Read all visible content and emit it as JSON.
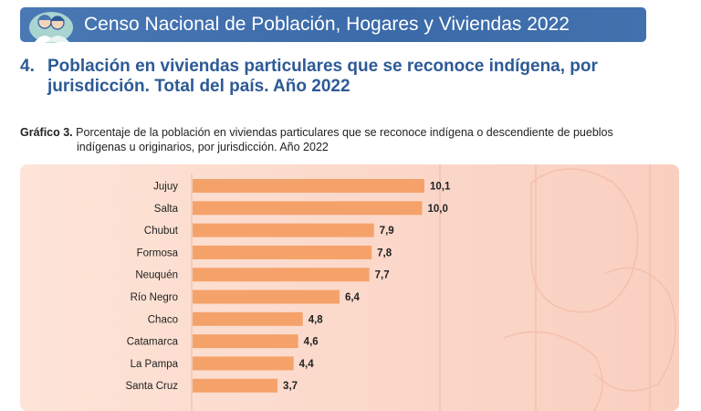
{
  "header": {
    "title": "Censo Nacional de Población, Hogares y Viviendas 2022"
  },
  "section": {
    "number": "4.",
    "title_line1": "Población en viviendas particulares que se reconoce indígena, por",
    "title_line2": "jurisdicción. Total del país. Año 2022"
  },
  "caption": {
    "label": "Gráfico 3.",
    "text_line1": "Porcentaje de la población en viviendas particulares que se reconoce indígena o descendiente de pueblos",
    "text_line2": "indígenas u originarios, por jurisdicción. Año 2022"
  },
  "colors": {
    "bar": "#f5a26a",
    "banner": "#3b6aa8",
    "heading": "#2d5a95"
  },
  "chart_data": {
    "type": "bar",
    "orientation": "horizontal",
    "categories": [
      "Jujuy",
      "Salta",
      "Chubut",
      "Formosa",
      "Neuquén",
      "Río Negro",
      "Chaco",
      "Catamarca",
      "La Pampa",
      "Santa Cruz"
    ],
    "values": [
      10.1,
      10.0,
      7.9,
      7.8,
      7.7,
      6.4,
      4.8,
      4.6,
      4.4,
      3.7
    ],
    "value_labels": [
      "10,1",
      "10,0",
      "7,9",
      "7,8",
      "7,7",
      "6,4",
      "4,8",
      "4,6",
      "4,4",
      "3,7"
    ],
    "xlim": [
      0,
      10.1
    ],
    "grid": false
  }
}
